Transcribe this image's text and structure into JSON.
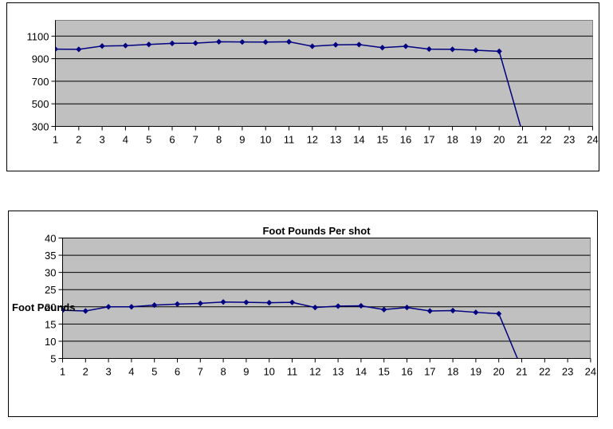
{
  "chart_data": [
    {
      "type": "line",
      "title": "",
      "xlabel": "",
      "ylabel": "",
      "x_categories": [
        "1",
        "2",
        "3",
        "4",
        "5",
        "6",
        "7",
        "8",
        "9",
        "10",
        "11",
        "12",
        "13",
        "14",
        "15",
        "16",
        "17",
        "18",
        "19",
        "20",
        "21",
        "22",
        "23",
        "24"
      ],
      "y_ticks": [
        300,
        500,
        700,
        900,
        1100
      ],
      "ylim": [
        300,
        1240
      ],
      "grid": true,
      "legend": "none",
      "series": [
        {
          "color": "#000080",
          "values": [
            985,
            983,
            1012,
            1016,
            1026,
            1036,
            1038,
            1050,
            1048,
            1047,
            1050,
            1010,
            1023,
            1025,
            998,
            1010,
            985,
            983,
            975,
            965,
            240
          ]
        }
      ]
    },
    {
      "type": "line",
      "title": "Foot Pounds Per shot",
      "xlabel": "",
      "ylabel": "Foot Pounds",
      "x_categories": [
        "1",
        "2",
        "3",
        "4",
        "5",
        "6",
        "7",
        "8",
        "9",
        "10",
        "11",
        "12",
        "13",
        "14",
        "15",
        "16",
        "17",
        "18",
        "19",
        "20",
        "21",
        "22",
        "23",
        "24"
      ],
      "y_ticks": [
        5,
        10,
        15,
        20,
        25,
        30,
        35,
        40
      ],
      "ylim": [
        5,
        40
      ],
      "grid": true,
      "legend": "none",
      "series": [
        {
          "color": "#000080",
          "values": [
            19,
            18.8,
            20,
            20,
            20.5,
            20.8,
            21,
            21.4,
            21.3,
            21.2,
            21.3,
            19.8,
            20.2,
            20.3,
            19.2,
            19.8,
            18.8,
            18.9,
            18.4,
            18,
            2
          ]
        }
      ]
    }
  ]
}
